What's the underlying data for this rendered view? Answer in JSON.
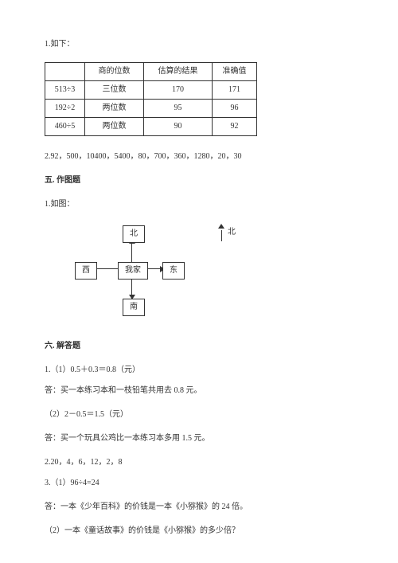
{
  "q1_label": "1.如下：",
  "table": {
    "headers": [
      "",
      "商的位数",
      "估算的结果",
      "准确值"
    ],
    "rows": [
      [
        "513÷3",
        "三位数",
        "170",
        "171"
      ],
      [
        "192÷2",
        "两位数",
        "95",
        "96"
      ],
      [
        "460÷5",
        "两位数",
        "90",
        "92"
      ]
    ]
  },
  "q2_text": "2.92，500，10400，5400，80，700，360，1280，20，30",
  "section5_title": "五. 作图题",
  "s5_q1": "1.如图：",
  "diagram": {
    "center": "我家",
    "north": "北",
    "south": "南",
    "west": "西",
    "east": "东",
    "legend": "北"
  },
  "section6_title": "六. 解答题",
  "s6_lines": [
    "1.（1）0.5＋0.3＝0.8（元）",
    "答：买一本练习本和一枝铅笔共用去 0.8 元。",
    "（2）2－0.5＝1.5（元）",
    "答：买一个玩具公鸡比一本练习本多用 1.5 元。",
    "2.20，4，6，12，2，8",
    "3.（1）96÷4=24",
    "答：一本《少年百科》的价钱是一本《小猕猴》的 24 倍。",
    "（2）一本《童话故事》的价钱是《小猕猴》的多少倍？"
  ]
}
